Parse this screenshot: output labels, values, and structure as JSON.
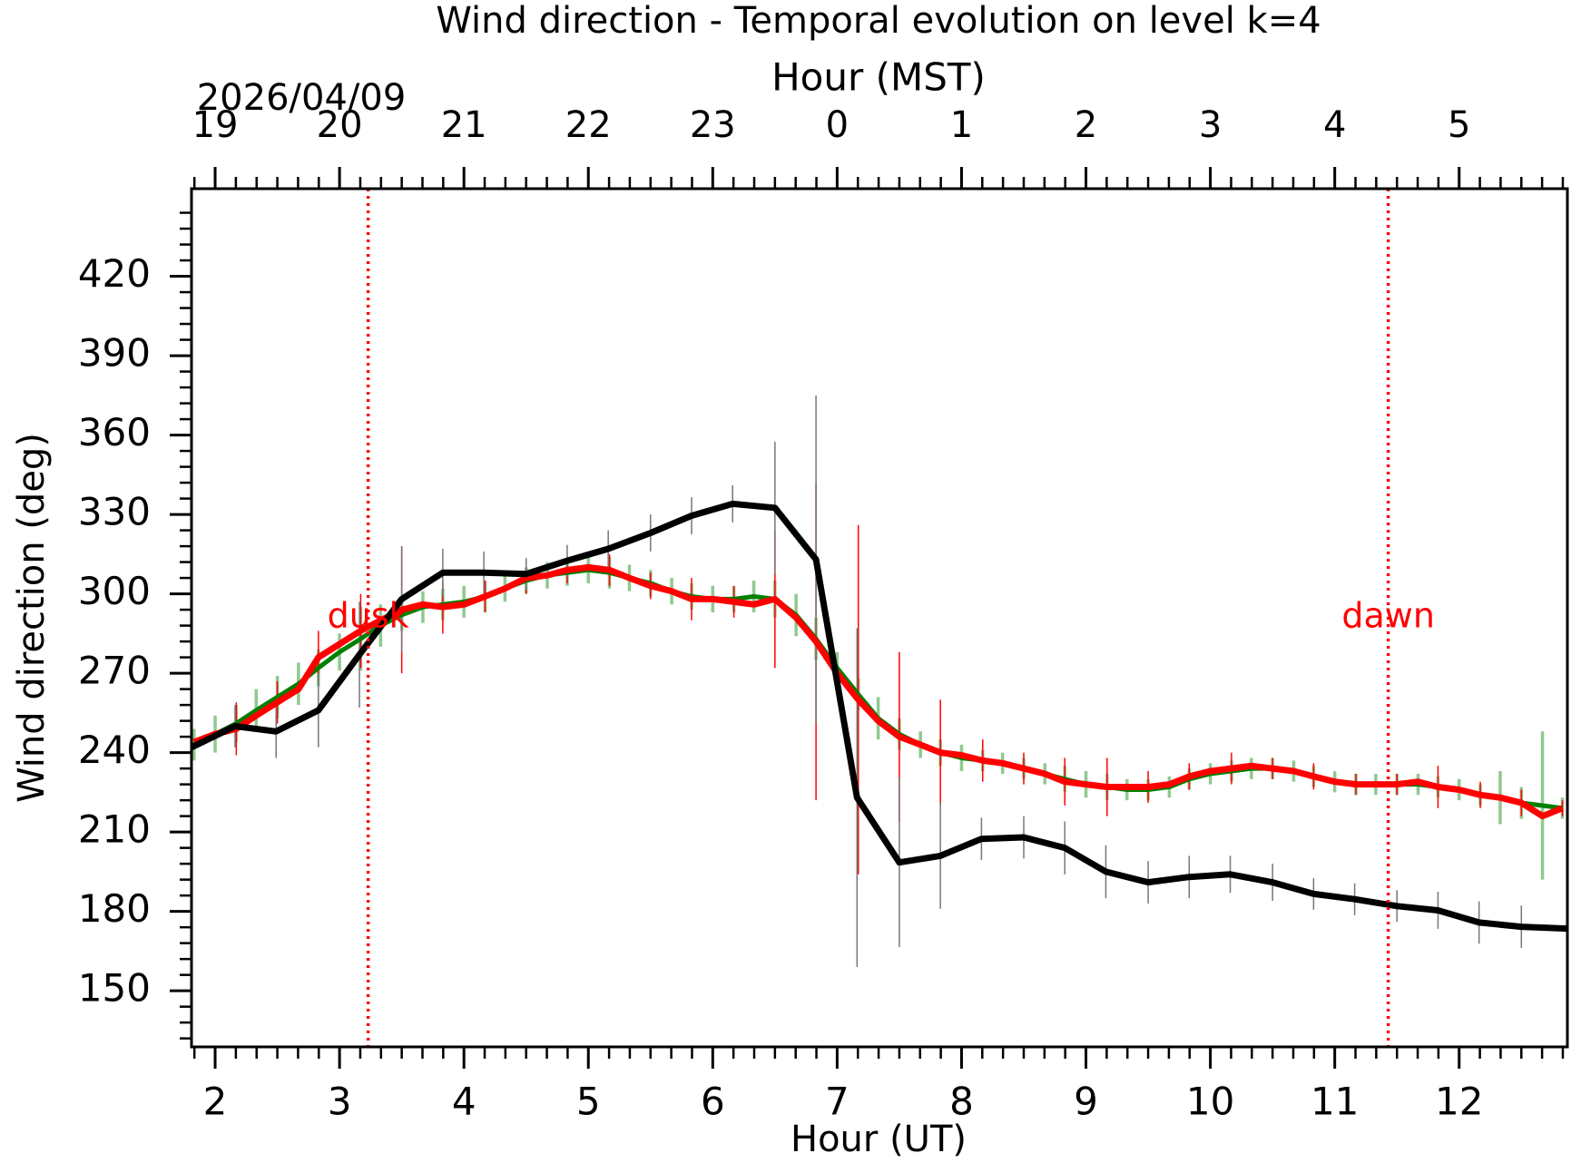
{
  "chart_data": {
    "type": "line",
    "title": "Wind direction - Temporal evolution on level k=4",
    "x2label": "Hour (MST)",
    "date_label": "2026/04/09",
    "xlabel": "Hour (UT)",
    "ylabel": "Wind direction (deg)",
    "xlim": [
      1.81,
      12.87
    ],
    "ylim": [
      128.8,
      453.1
    ],
    "xticks": [
      2,
      3,
      4,
      5,
      6,
      7,
      8,
      9,
      10,
      11,
      12
    ],
    "x2ticks": [
      {
        "value": 2,
        "label": "19"
      },
      {
        "value": 3,
        "label": "20"
      },
      {
        "value": 4,
        "label": "21"
      },
      {
        "value": 5,
        "label": "22"
      },
      {
        "value": 6,
        "label": "23"
      },
      {
        "value": 7,
        "label": "0"
      },
      {
        "value": 8,
        "label": "1"
      },
      {
        "value": 9,
        "label": "2"
      },
      {
        "value": 10,
        "label": "3"
      },
      {
        "value": 11,
        "label": "4"
      },
      {
        "value": 12,
        "label": "5"
      }
    ],
    "yticks": [
      150,
      180,
      210,
      240,
      270,
      300,
      330,
      360,
      390,
      420
    ],
    "annotations": [
      {
        "text": "dusk",
        "x": 3.23,
        "y": 291,
        "color": "#ff0000"
      },
      {
        "text": "dawn",
        "x": 11.43,
        "y": 291,
        "color": "#ff0000"
      }
    ],
    "series": [
      {
        "color": "#008000",
        "error_color": "#8fc98f",
        "width": 5,
        "x": [
          1.83,
          2,
          2.17,
          2.33,
          2.5,
          2.67,
          2.83,
          3,
          3.17,
          3.33,
          3.5,
          3.67,
          3.83,
          4,
          4.17,
          4.33,
          4.5,
          4.67,
          4.83,
          5,
          5.17,
          5.33,
          5.5,
          5.67,
          5.83,
          6,
          6.17,
          6.33,
          6.5,
          6.67,
          6.83,
          7,
          7.17,
          7.33,
          7.5,
          7.67,
          7.83,
          8,
          8.17,
          8.33,
          8.5,
          8.67,
          8.83,
          9,
          9.17,
          9.33,
          9.5,
          9.67,
          9.83,
          10,
          10.17,
          10.33,
          10.5,
          10.67,
          10.83,
          11,
          11.17,
          11.33,
          11.5,
          11.67,
          11.83,
          12,
          12.17,
          12.33,
          12.5,
          12.67,
          12.83
        ],
        "values": [
          243,
          247,
          251,
          256,
          261,
          266,
          272,
          278,
          283,
          288,
          292,
          295,
          296,
          297,
          299,
          302,
          305,
          307,
          308,
          309,
          308,
          306,
          304,
          301,
          299,
          298,
          298,
          299,
          298,
          292,
          283,
          272,
          262,
          253,
          247,
          243,
          240,
          238,
          237,
          236,
          234,
          232,
          230,
          228,
          227,
          226,
          226,
          227,
          230,
          232,
          233,
          234,
          234,
          233,
          231,
          229,
          228,
          228,
          228,
          228,
          227,
          226,
          224,
          223,
          221,
          220,
          219
        ],
        "errors": [
          6,
          7,
          7,
          8,
          8,
          8,
          7,
          7,
          12,
          8,
          6,
          6,
          6,
          6,
          6,
          5,
          5,
          5,
          5,
          5,
          6,
          5,
          5,
          5,
          5,
          5,
          5,
          6,
          7,
          8,
          8,
          6,
          6,
          8,
          6,
          5,
          5,
          5,
          4,
          4,
          4,
          4,
          5,
          5,
          5,
          4,
          4,
          4,
          4,
          4,
          4,
          4,
          4,
          4,
          4,
          4,
          4,
          4,
          4,
          4,
          4,
          4,
          4,
          10,
          6,
          28,
          4
        ]
      },
      {
        "color": "#ff0000",
        "error_color": "#ff0000",
        "width": 7,
        "x": [
          1.83,
          2,
          2.17,
          2.33,
          2.5,
          2.67,
          2.83,
          3,
          3.17,
          3.33,
          3.5,
          3.67,
          3.83,
          4,
          4.17,
          4.33,
          4.5,
          4.67,
          4.83,
          5,
          5.17,
          5.33,
          5.5,
          5.67,
          5.83,
          6,
          6.17,
          6.33,
          6.5,
          6.67,
          6.83,
          7,
          7.17,
          7.33,
          7.5,
          7.67,
          7.83,
          8,
          8.17,
          8.33,
          8.5,
          8.67,
          8.83,
          9,
          9.17,
          9.33,
          9.5,
          9.67,
          9.83,
          10,
          10.17,
          10.33,
          10.5,
          10.67,
          10.83,
          11,
          11.17,
          11.33,
          11.5,
          11.67,
          11.83,
          12,
          12.17,
          12.33,
          12.5,
          12.67,
          12.83
        ],
        "values": [
          244,
          247,
          249,
          254,
          259,
          264,
          276,
          281,
          286,
          290,
          294,
          296,
          295,
          296,
          299,
          302,
          306,
          307,
          309,
          310,
          309,
          306,
          303,
          301,
          298,
          298,
          297,
          296,
          298,
          291,
          282,
          270,
          260,
          252,
          246,
          243,
          240,
          239,
          237,
          236,
          234,
          232,
          229,
          228,
          227,
          227,
          227,
          228,
          231,
          233,
          234,
          235,
          234,
          233,
          231,
          229,
          228,
          228,
          228,
          229,
          227,
          226,
          224,
          223,
          221,
          216,
          219
        ],
        "errors": [
          null,
          null,
          10,
          null,
          8,
          null,
          10,
          null,
          14,
          null,
          24,
          null,
          10,
          null,
          6,
          null,
          6,
          null,
          5,
          null,
          6,
          null,
          5,
          null,
          8,
          null,
          6,
          null,
          26,
          null,
          60,
          null,
          66,
          null,
          32,
          null,
          20,
          null,
          8,
          null,
          6,
          null,
          9,
          null,
          11,
          null,
          6,
          null,
          5,
          null,
          6,
          null,
          4,
          null,
          5,
          null,
          4,
          null,
          4,
          null,
          8,
          null,
          5,
          null,
          5,
          null,
          3
        ]
      },
      {
        "color": "#000000",
        "error_color": "#777777",
        "width": 7,
        "x": [
          1.81,
          2.16,
          2.49,
          2.83,
          3.16,
          3.5,
          3.83,
          4.16,
          4.5,
          4.83,
          5.16,
          5.5,
          5.83,
          6.16,
          6.5,
          6.83,
          7.16,
          7.5,
          7.83,
          8.16,
          8.5,
          8.83,
          9.16,
          9.5,
          9.83,
          10.16,
          10.5,
          10.83,
          11.16,
          11.5,
          11.83,
          12.16,
          12.5,
          12.87
        ],
        "values": [
          242,
          250,
          248,
          256,
          277,
          298,
          308,
          308,
          307.5,
          312.5,
          317,
          323,
          329.5,
          334,
          332.5,
          313,
          223,
          198.5,
          201,
          207.4,
          208,
          204,
          195,
          191,
          193,
          194,
          191,
          186.6,
          184.6,
          182,
          180.4,
          175.8,
          174.2,
          173.5
        ],
        "errors": [
          null,
          8,
          10,
          14,
          20,
          20,
          9,
          8,
          6,
          6,
          7,
          7,
          7,
          7,
          25,
          62,
          64,
          32,
          20,
          8,
          8,
          10,
          10,
          8,
          8,
          7,
          7,
          6,
          6,
          6,
          7,
          8,
          8,
          4
        ]
      }
    ]
  }
}
